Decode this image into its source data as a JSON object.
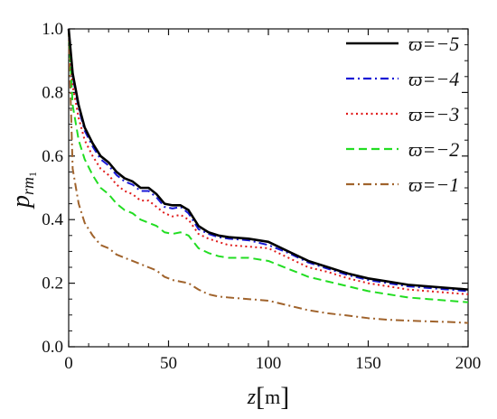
{
  "chart_data": {
    "type": "line",
    "xlabel": {
      "var": "z",
      "unit": "m"
    },
    "ylabel": {
      "main": "p",
      "sub": "rm",
      "subsub": "1"
    },
    "xlim": [
      0,
      200
    ],
    "ylim": [
      0,
      1.0
    ],
    "xticks": [
      0,
      50,
      100,
      150,
      200
    ],
    "xtick_labels": [
      "0",
      "50",
      "100",
      "150",
      "200"
    ],
    "yticks": [
      0,
      0.2,
      0.4,
      0.6,
      0.8,
      1.0
    ],
    "ytick_labels": [
      "0.0",
      "0.2",
      "0.4",
      "0.6",
      "0.8",
      "1.0"
    ],
    "grid": false,
    "legend_position": "top-right",
    "series": [
      {
        "name": "ϖ=−5",
        "color": "#000000",
        "dash": "solid",
        "x": [
          0,
          2,
          5,
          8,
          12,
          16,
          20,
          24,
          28,
          32,
          36,
          40,
          44,
          48,
          52,
          56,
          60,
          65,
          70,
          75,
          80,
          90,
          100,
          110,
          120,
          130,
          140,
          150,
          160,
          170,
          180,
          190,
          200
        ],
        "y": [
          1.0,
          0.86,
          0.76,
          0.69,
          0.64,
          0.6,
          0.58,
          0.55,
          0.53,
          0.52,
          0.5,
          0.5,
          0.48,
          0.45,
          0.445,
          0.445,
          0.43,
          0.38,
          0.36,
          0.35,
          0.345,
          0.34,
          0.33,
          0.3,
          0.27,
          0.25,
          0.23,
          0.215,
          0.205,
          0.195,
          0.19,
          0.185,
          0.18
        ]
      },
      {
        "name": "ϖ=−4",
        "color": "#1a1ad6",
        "dash": "dashdot",
        "x": [
          0,
          2,
          5,
          8,
          12,
          16,
          20,
          24,
          28,
          32,
          36,
          40,
          44,
          48,
          52,
          56,
          60,
          65,
          70,
          75,
          80,
          90,
          100,
          110,
          120,
          130,
          140,
          150,
          160,
          170,
          180,
          190,
          200
        ],
        "y": [
          1.0,
          0.85,
          0.75,
          0.68,
          0.63,
          0.59,
          0.57,
          0.54,
          0.52,
          0.51,
          0.49,
          0.49,
          0.47,
          0.44,
          0.435,
          0.44,
          0.42,
          0.37,
          0.355,
          0.345,
          0.34,
          0.335,
          0.32,
          0.295,
          0.265,
          0.245,
          0.225,
          0.21,
          0.2,
          0.19,
          0.185,
          0.18,
          0.175
        ]
      },
      {
        "name": "ϖ=−3",
        "color": "#e01b1b",
        "dash": "dotted",
        "x": [
          0,
          2,
          5,
          8,
          12,
          16,
          20,
          24,
          28,
          32,
          36,
          40,
          44,
          48,
          52,
          56,
          60,
          65,
          70,
          75,
          80,
          90,
          100,
          110,
          120,
          130,
          140,
          150,
          160,
          170,
          180,
          190,
          200
        ],
        "y": [
          1.0,
          0.82,
          0.72,
          0.65,
          0.6,
          0.56,
          0.54,
          0.51,
          0.49,
          0.48,
          0.46,
          0.46,
          0.44,
          0.42,
          0.41,
          0.415,
          0.4,
          0.355,
          0.34,
          0.33,
          0.32,
          0.315,
          0.31,
          0.28,
          0.25,
          0.235,
          0.215,
          0.2,
          0.19,
          0.18,
          0.175,
          0.17,
          0.165
        ]
      },
      {
        "name": "ϖ=−2",
        "color": "#22dd22",
        "dash": "dashed",
        "x": [
          0,
          2,
          5,
          8,
          12,
          16,
          20,
          24,
          28,
          32,
          36,
          40,
          44,
          48,
          52,
          56,
          60,
          65,
          70,
          75,
          80,
          90,
          100,
          110,
          120,
          130,
          140,
          150,
          160,
          170,
          180,
          190,
          200
        ],
        "y": [
          1.0,
          0.76,
          0.65,
          0.59,
          0.54,
          0.5,
          0.48,
          0.45,
          0.43,
          0.42,
          0.4,
          0.39,
          0.38,
          0.36,
          0.355,
          0.36,
          0.35,
          0.31,
          0.295,
          0.285,
          0.28,
          0.28,
          0.27,
          0.245,
          0.22,
          0.205,
          0.19,
          0.175,
          0.165,
          0.155,
          0.15,
          0.145,
          0.14
        ]
      },
      {
        "name": "ϖ=−1",
        "color": "#a0632c",
        "dash": "dashdot",
        "x": [
          0,
          2,
          5,
          8,
          12,
          16,
          20,
          24,
          28,
          32,
          36,
          40,
          44,
          48,
          52,
          56,
          60,
          65,
          70,
          75,
          80,
          90,
          100,
          110,
          120,
          130,
          140,
          150,
          160,
          170,
          180,
          190,
          200
        ],
        "y": [
          1.0,
          0.56,
          0.45,
          0.39,
          0.35,
          0.32,
          0.31,
          0.29,
          0.28,
          0.27,
          0.26,
          0.25,
          0.24,
          0.22,
          0.21,
          0.205,
          0.2,
          0.18,
          0.165,
          0.158,
          0.155,
          0.15,
          0.145,
          0.13,
          0.115,
          0.105,
          0.098,
          0.09,
          0.085,
          0.082,
          0.08,
          0.078,
          0.075
        ]
      }
    ]
  }
}
